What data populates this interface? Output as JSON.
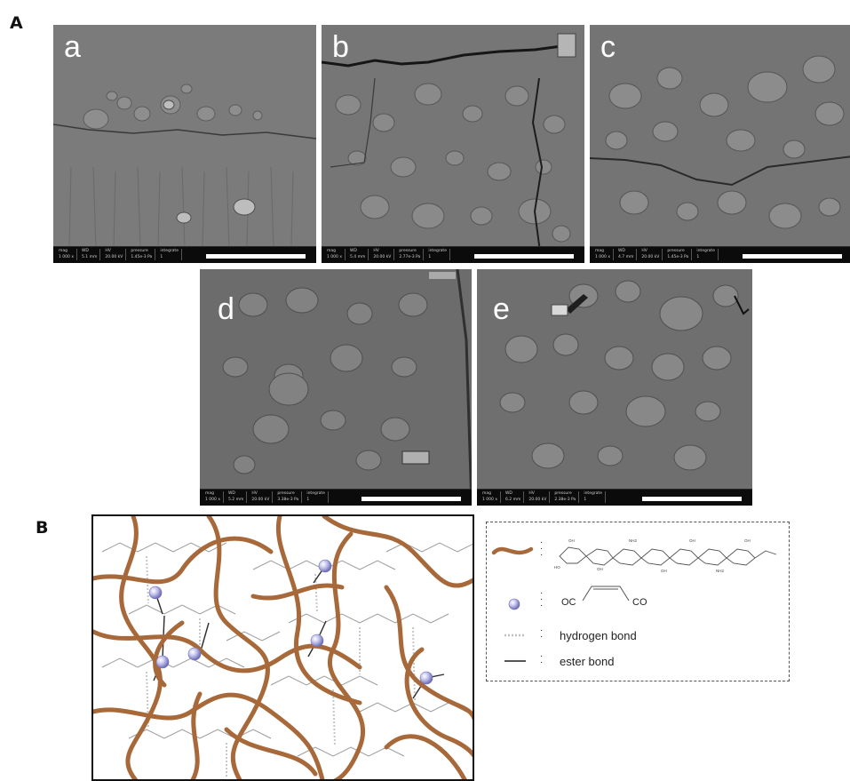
{
  "figure": {
    "section_a_label": "A",
    "section_b_label": "B",
    "panels": [
      {
        "letter": "a"
      },
      {
        "letter": "b"
      },
      {
        "letter": "c"
      },
      {
        "letter": "d"
      },
      {
        "letter": "e"
      }
    ],
    "legend": {
      "crosslinker_left": "OC",
      "crosslinker_right": "CO",
      "hydrogen_bond": "hydrogen bond",
      "ester_bond": "ester bond"
    },
    "colors": {
      "polymer_strand": "#a8693a",
      "crosslinker_sphere": "#b9b9e8",
      "sem_background": "#6f6f6f"
    }
  }
}
